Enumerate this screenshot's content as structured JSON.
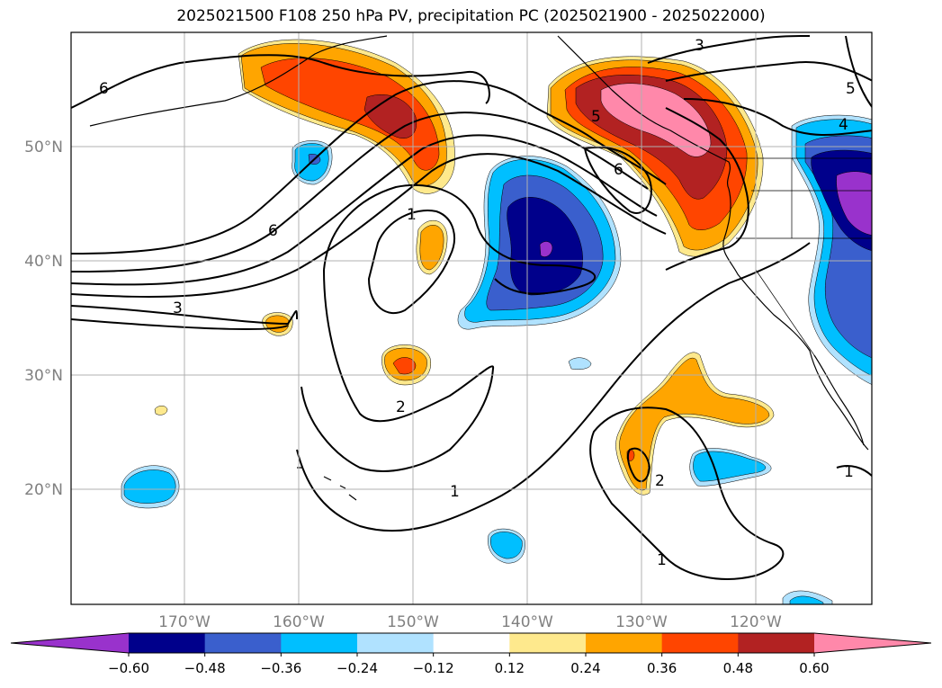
{
  "title": "2025021500 F108 250 hPa PV, precipitation PC (2025021900 - 2025022000)",
  "lat_labels": [
    "50°N",
    "40°N",
    "30°N",
    "20°N"
  ],
  "lon_labels": [
    "170°W",
    "160°W",
    "150°W",
    "140°W",
    "130°W",
    "120°W"
  ],
  "contour_labels": [
    "6",
    "6",
    "3",
    "1",
    "2",
    "1",
    "1",
    "5",
    "6",
    "3",
    "5",
    "4",
    "2",
    "1"
  ],
  "colorbar": {
    "tick_labels": [
      "−0.60",
      "−0.48",
      "−0.36",
      "−0.24",
      "−0.12",
      "0.12",
      "0.24",
      "0.36",
      "0.48",
      "0.60"
    ],
    "colors": [
      "#9932cc",
      "#00008b",
      "#3a5fcd",
      "#00bfff",
      "#b0e2ff",
      "#ffffff",
      "#fee98d",
      "#ffa500",
      "#ff4500",
      "#b22222",
      "#ff88aa"
    ]
  },
  "colors": {
    "pos_1": "#fee98d",
    "pos_2": "#ffa500",
    "pos_3": "#ff4500",
    "pos_4": "#b22222",
    "pos_5": "#ff88aa",
    "neg_1": "#b0e2ff",
    "neg_2": "#00bfff",
    "neg_3": "#3a5fcd",
    "neg_4": "#00008b",
    "neg_5": "#9932cc"
  }
}
